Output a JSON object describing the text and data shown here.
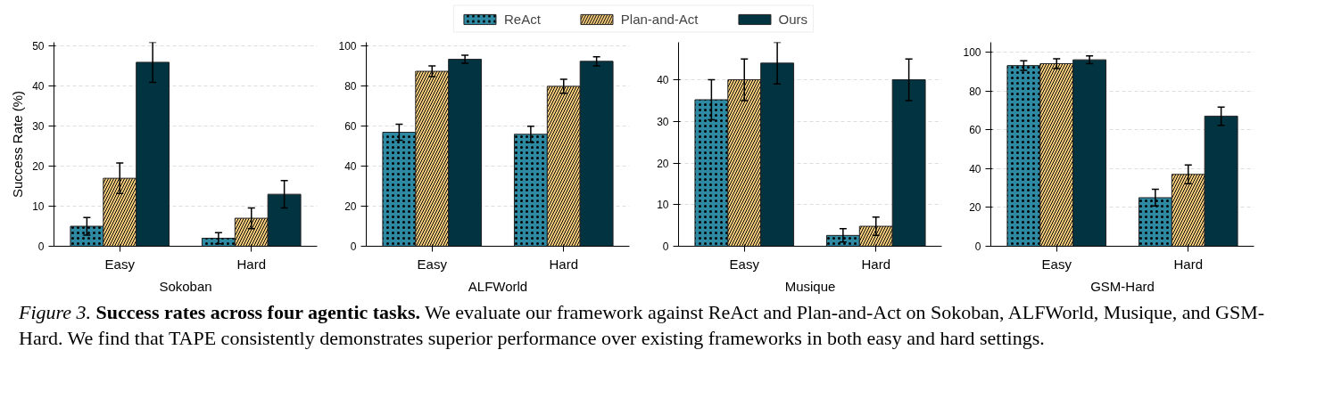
{
  "chart_data": [
    {
      "type": "bar",
      "xlabel": "Sokoban",
      "ylabel": "Success Rate (%)",
      "categories": [
        "Easy",
        "Hard"
      ],
      "ylim": [
        0,
        51
      ],
      "yticks": [
        0,
        10,
        20,
        30,
        40,
        50
      ],
      "grid": "y",
      "legend": "top",
      "series": [
        {
          "name": "ReAct",
          "color": "#2e8aa3",
          "values": [
            5,
            2
          ],
          "errors": [
            2.2,
            1.4
          ]
        },
        {
          "name": "Plan-and-Act",
          "color": "#fbd17f",
          "values": [
            17,
            7
          ],
          "errors": [
            3.8,
            2.6
          ]
        },
        {
          "name": "Ours",
          "color": "#023340",
          "values": [
            46,
            13
          ],
          "errors": [
            5,
            3.4
          ]
        }
      ],
      "annotations": [
        "Figure 3.",
        "Success rates across four agentic tasks.",
        "We evaluate our framework against ReAct and Plan-and-Act on Sokoban, ALFWorld, Musique, and GSM-Hard. We find that TAPE consistently demonstrates superior performance over existing frameworks in both easy and hard settings."
      ]
    },
    {
      "type": "bar",
      "xlabel": "ALFWorld",
      "categories": [
        "Easy",
        "Hard"
      ],
      "ylim": [
        0,
        102
      ],
      "yticks": [
        0,
        20,
        40,
        60,
        80,
        100
      ],
      "grid": "y",
      "series": [
        {
          "color": "#2e8aa3",
          "values": [
            57,
            56
          ],
          "errors": [
            4,
            4
          ]
        },
        {
          "color": "#fbd17f",
          "values": [
            87.5,
            80
          ],
          "errors": [
            2.7,
            3.5
          ]
        },
        {
          "color": "#023340",
          "values": [
            93.5,
            92.5
          ],
          "errors": [
            2,
            2.3
          ]
        }
      ]
    },
    {
      "type": "bar",
      "xlabel": "Musique",
      "categories": [
        "Easy",
        "Hard"
      ],
      "ylim": [
        0,
        49
      ],
      "yticks": [
        0,
        10,
        20,
        30,
        40
      ],
      "grid": "y",
      "series": [
        {
          "color": "#2e8aa3",
          "values": [
            35.2,
            2.6
          ],
          "errors": [
            4.8,
            1.6
          ]
        },
        {
          "color": "#fbd17f",
          "values": [
            40,
            4.8
          ],
          "errors": [
            5,
            2.2
          ]
        },
        {
          "color": "#023340",
          "values": [
            44,
            40
          ],
          "errors": [
            5,
            5
          ]
        }
      ]
    },
    {
      "type": "bar",
      "xlabel": "GSM-Hard",
      "categories": [
        "Easy",
        "Hard"
      ],
      "ylim": [
        0,
        105
      ],
      "yticks": [
        0,
        20,
        40,
        60,
        80,
        100
      ],
      "grid": "y",
      "series": [
        {
          "color": "#2e8aa3",
          "values": [
            93,
            25
          ],
          "errors": [
            2.5,
            4.3
          ]
        },
        {
          "color": "#fbd17f",
          "values": [
            94,
            37
          ],
          "errors": [
            2.5,
            4.8
          ]
        },
        {
          "color": "#023340",
          "values": [
            96,
            67
          ],
          "errors": [
            2,
            4.7
          ]
        }
      ]
    }
  ]
}
